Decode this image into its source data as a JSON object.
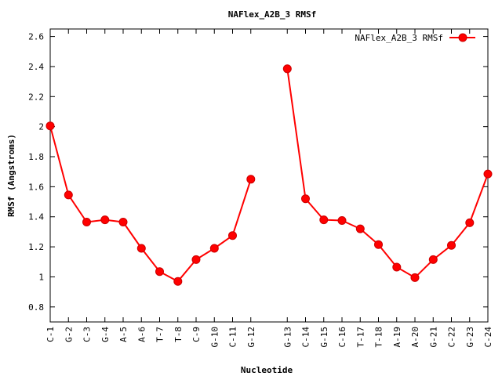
{
  "chart_data": {
    "type": "line",
    "title": "NAFlex_A2B_3 RMSf",
    "xlabel": "Nucleotide",
    "ylabel": "RMSf (Angstroms)",
    "ylim": [
      0.7,
      2.65
    ],
    "yticks": [
      0.8,
      1,
      1.2,
      1.4,
      1.6,
      1.8,
      2,
      2.2,
      2.4,
      2.6
    ],
    "ytick_labels": [
      "0.8",
      "1",
      "1.2",
      "1.4",
      "1.6",
      "1.8",
      "2",
      "2.2",
      "2.4",
      "2.6"
    ],
    "xlim": [
      1,
      25
    ],
    "grid": false,
    "legend_position": "top-right",
    "categories": [
      "C-1",
      "G-2",
      "C-3",
      "G-4",
      "A-5",
      "A-6",
      "T-7",
      "T-8",
      "C-9",
      "G-10",
      "C-11",
      "G-12",
      "G-13",
      "C-14",
      "G-15",
      "C-16",
      "T-17",
      "T-18",
      "A-19",
      "A-20",
      "G-21",
      "C-22",
      "G-23",
      "C-24"
    ],
    "x": [
      1,
      2,
      3,
      4,
      5,
      6,
      7,
      8,
      9,
      10,
      11,
      12,
      14,
      15,
      16,
      17,
      18,
      19,
      20,
      21,
      22,
      23,
      24,
      25
    ],
    "segments": [
      [
        0,
        11
      ],
      [
        12,
        23
      ]
    ],
    "series": [
      {
        "name": "NAFlex_A2B_3 RMSf",
        "color": "#ff0000",
        "values": [
          2.005,
          1.545,
          1.365,
          1.38,
          1.365,
          1.19,
          1.035,
          0.97,
          1.115,
          1.19,
          1.275,
          1.65,
          2.385,
          1.52,
          1.38,
          1.375,
          1.32,
          1.215,
          1.065,
          0.995,
          1.115,
          1.21,
          1.36,
          1.685
        ]
      }
    ]
  }
}
